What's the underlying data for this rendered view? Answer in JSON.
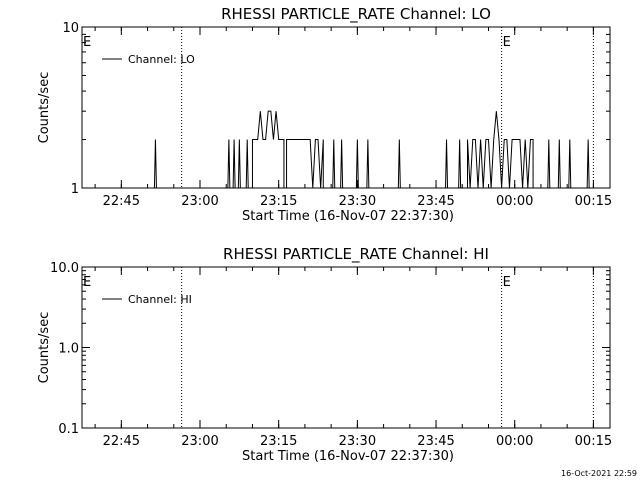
{
  "timestamp": "16-Oct-2021 22:59",
  "chart_data": [
    {
      "type": "line",
      "title": "RHESSI PARTICLE_RATE Channel: LO",
      "xlabel": "Start Time (16-Nov-07 22:37:30)",
      "ylabel": "Counts/sec",
      "yscale": "log",
      "ylim": [
        1,
        10
      ],
      "xlim": [
        "22:37:30",
        "00:18:10"
      ],
      "x_ticks": [
        "22:45",
        "23:00",
        "23:15",
        "23:30",
        "23:45",
        "00:00",
        "00:15"
      ],
      "y_ticks": [
        "1",
        "10"
      ],
      "legend": {
        "position": "top-left",
        "entries": [
          "Channel: LO"
        ]
      },
      "event_markers": [
        {
          "time": "22:56:30",
          "label": "E"
        },
        {
          "time": "23:57:30",
          "label": ""
        },
        {
          "time": "00:15:00",
          "label": ""
        }
      ],
      "series": [
        {
          "name": "Channel: LO",
          "spikes": [
            {
              "time": "22:51:30",
              "value": 2
            },
            {
              "time": "23:05:30",
              "value": 2
            },
            {
              "time": "23:06:30",
              "value": 2
            },
            {
              "time": "23:07:30",
              "value": 2
            },
            {
              "time": "23:09:00",
              "value": 2
            },
            {
              "time": "23:25:30",
              "value": 2
            },
            {
              "time": "23:27:00",
              "value": 2
            },
            {
              "time": "23:30:00",
              "value": 2
            },
            {
              "time": "23:32:00",
              "value": 2
            },
            {
              "time": "23:38:00",
              "value": 2
            },
            {
              "time": "23:47:00",
              "value": 2
            },
            {
              "time": "23:49:30",
              "value": 2
            },
            {
              "time": "00:06:30",
              "value": 2
            },
            {
              "time": "00:08:30",
              "value": 2
            },
            {
              "time": "00:10:30",
              "value": 2
            },
            {
              "time": "00:14:00",
              "value": 2
            }
          ],
          "segments": [
            {
              "from": "23:10:00",
              "to": "23:16:00",
              "values": [
                2,
                2,
                2,
                3,
                2,
                2,
                3,
                3,
                2,
                3,
                2,
                2,
                2
              ]
            },
            {
              "from": "23:16:30",
              "to": "23:23:30",
              "values": [
                2,
                2,
                2,
                2,
                2,
                2,
                2,
                2,
                2,
                2,
                1,
                2,
                2,
                1,
                2
              ]
            },
            {
              "from": "23:51:00",
              "to": "00:03:30",
              "values": [
                2,
                1,
                2,
                2,
                1,
                2,
                1,
                2,
                2,
                1,
                2,
                3,
                2,
                1,
                2,
                2,
                1,
                2,
                2,
                2,
                2,
                1,
                2,
                1,
                2,
                2
              ]
            }
          ]
        }
      ]
    },
    {
      "type": "line",
      "title": "RHESSI PARTICLE_RATE Channel: HI",
      "xlabel": "Start Time (16-Nov-07 22:37:30)",
      "ylabel": "Counts/sec",
      "yscale": "log",
      "ylim": [
        0.1,
        10
      ],
      "xlim": [
        "22:37:30",
        "00:18:10"
      ],
      "x_ticks": [
        "22:45",
        "23:00",
        "23:15",
        "23:30",
        "23:45",
        "00:00",
        "00:15"
      ],
      "y_ticks": [
        "0.1",
        "1.0",
        "10.0"
      ],
      "legend": {
        "position": "top-left",
        "entries": [
          "Channel: HI"
        ]
      },
      "event_markers": [
        {
          "time": "22:56:30",
          "label": "E"
        },
        {
          "time": "23:57:30",
          "label": ""
        },
        {
          "time": "00:15:00",
          "label": ""
        }
      ],
      "series": [
        {
          "name": "Channel: HI",
          "spikes": [],
          "segments": []
        }
      ]
    }
  ]
}
